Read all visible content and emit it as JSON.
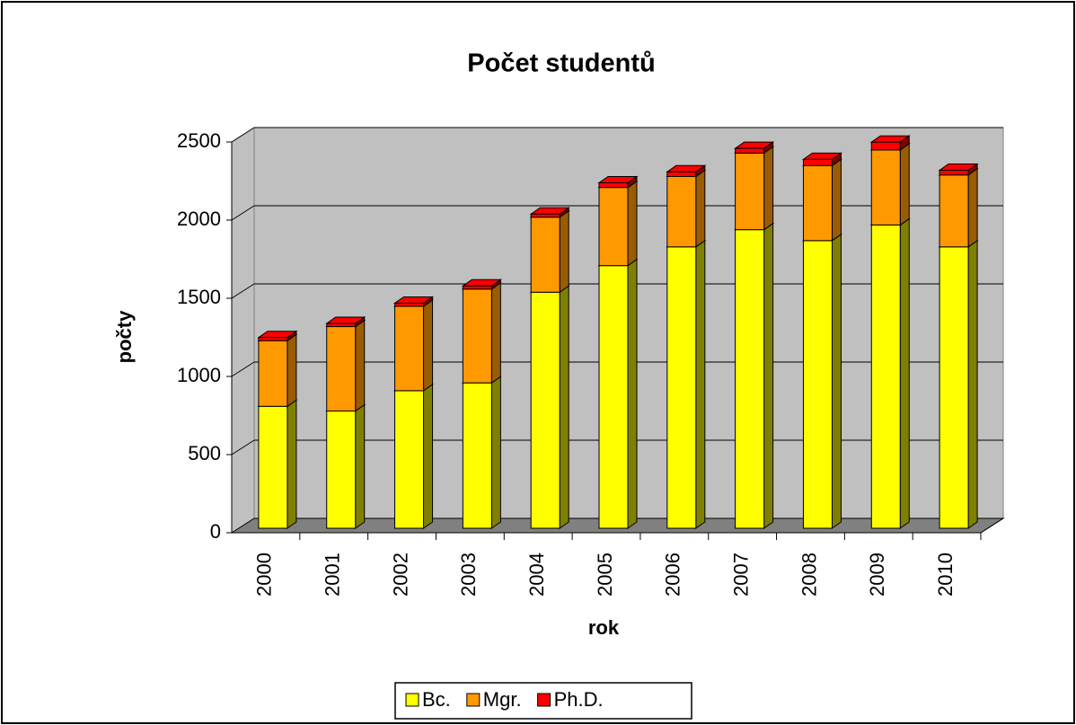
{
  "chart_data": {
    "type": "bar3d_stacked",
    "title": "Počet studentů",
    "x_label": "rok",
    "y_label": "počty",
    "categories": [
      "2000",
      "2001",
      "2002",
      "2003",
      "2004",
      "2005",
      "2006",
      "2007",
      "2008",
      "2009",
      "2010"
    ],
    "series": [
      {
        "name": "Bc.",
        "color": "#ffff00",
        "side": "#808000",
        "values": [
          780,
          750,
          880,
          930,
          1510,
          1680,
          1800,
          1910,
          1840,
          1940,
          1800
        ]
      },
      {
        "name": "Mgr.",
        "color": "#ff9900",
        "side": "#995c00",
        "values": [
          420,
          540,
          540,
          600,
          480,
          500,
          450,
          490,
          480,
          480,
          460
        ]
      },
      {
        "name": "Ph.D.",
        "color": "#ff0000",
        "side": "#800000",
        "values": [
          20,
          20,
          20,
          20,
          20,
          30,
          30,
          30,
          40,
          50,
          30
        ]
      }
    ],
    "ylim": [
      0,
      2500
    ],
    "yticks": [
      0,
      500,
      1000,
      1500,
      2000,
      2500
    ],
    "grid": true
  }
}
